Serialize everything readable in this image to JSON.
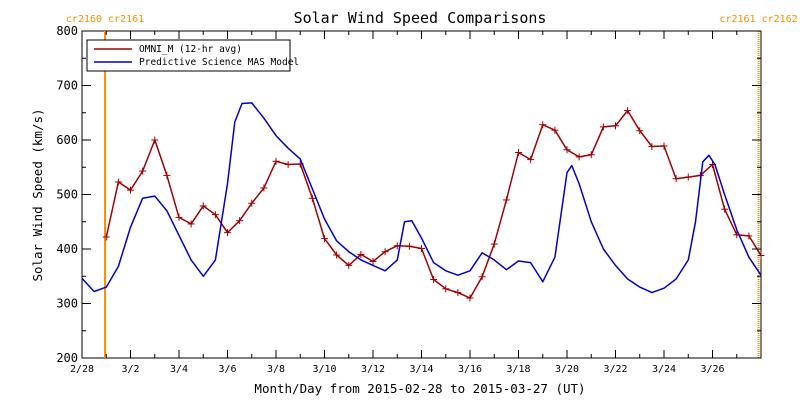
{
  "chart_data": {
    "type": "line",
    "title": "Solar Wind Speed Comparisons",
    "xlabel": "Month/Day from 2015-02-28 to 2015-03-27 (UT)",
    "ylabel": "Solar Wind Speed (km/s)",
    "xlim": [
      0,
      28
    ],
    "ylim": [
      200,
      800
    ],
    "x_ticks": [
      {
        "x": 0,
        "label": "2/28"
      },
      {
        "x": 2,
        "label": "3/2"
      },
      {
        "x": 4,
        "label": "3/4"
      },
      {
        "x": 6,
        "label": "3/6"
      },
      {
        "x": 8,
        "label": "3/8"
      },
      {
        "x": 10,
        "label": "3/10"
      },
      {
        "x": 12,
        "label": "3/12"
      },
      {
        "x": 14,
        "label": "3/14"
      },
      {
        "x": 16,
        "label": "3/16"
      },
      {
        "x": 18,
        "label": "3/18"
      },
      {
        "x": 20,
        "label": "3/20"
      },
      {
        "x": 22,
        "label": "3/22"
      },
      {
        "x": 24,
        "label": "3/24"
      },
      {
        "x": 26,
        "label": "3/26"
      }
    ],
    "y_ticks": [
      200,
      300,
      400,
      500,
      600,
      700,
      800
    ],
    "legend": {
      "placement": "top-left"
    },
    "colors": {
      "omni": "#a00000",
      "model": "#0000cc",
      "carrington": "#ff8c00"
    },
    "carrington_markers": [
      {
        "x": 0.95,
        "labels": [
          "cr2160",
          "cr2161"
        ],
        "style": "solid"
      },
      {
        "x": 27.9,
        "labels": [
          "cr2161",
          "cr2162"
        ],
        "style": "dotted"
      }
    ],
    "series": [
      {
        "name": "OMNI_M (12-hr avg)",
        "color": "#a00000",
        "marker": "plus",
        "x": [
          1.0,
          1.5,
          2.0,
          2.5,
          3.0,
          3.5,
          4.0,
          4.5,
          5.0,
          5.5,
          6.0,
          6.5,
          7.0,
          7.5,
          8.0,
          8.5,
          9.0,
          9.5,
          10.0,
          10.5,
          11.0,
          11.5,
          12.0,
          12.5,
          13.0,
          13.5,
          14.0,
          14.5,
          15.0,
          15.5,
          16.0,
          16.5,
          17.0,
          17.5,
          18.0,
          18.5,
          19.0,
          19.5,
          20.0,
          20.5,
          21.0,
          21.5,
          22.0,
          22.5,
          23.0,
          23.5,
          24.0,
          24.5,
          25.0,
          25.5,
          26.0,
          26.5,
          27.0,
          27.5,
          28.0
        ],
        "y": [
          422,
          523,
          508,
          543,
          600,
          535,
          458,
          446,
          479,
          463,
          430,
          452,
          484,
          512,
          561,
          555,
          556,
          493,
          419,
          389,
          370,
          390,
          377,
          395,
          406,
          405,
          401,
          344,
          327,
          320,
          310,
          349,
          409,
          490,
          577,
          564,
          628,
          618,
          582,
          569,
          573,
          624,
          626,
          654,
          617,
          588,
          589,
          529,
          532,
          535,
          555,
          473,
          426,
          424,
          388
        ]
      },
      {
        "name": "Predictive Science MAS Model",
        "color": "#0000cc",
        "marker": "none",
        "x": [
          0.0,
          0.5,
          1.0,
          1.5,
          2.0,
          2.5,
          3.0,
          3.5,
          4.0,
          4.5,
          5.0,
          5.5,
          6.0,
          6.3,
          6.6,
          7.0,
          7.5,
          8.0,
          8.5,
          9.0,
          9.5,
          10.0,
          10.5,
          11.0,
          11.5,
          12.0,
          12.5,
          13.0,
          13.3,
          13.6,
          14.0,
          14.5,
          15.0,
          15.5,
          16.0,
          16.5,
          17.0,
          17.5,
          18.0,
          18.5,
          19.0,
          19.5,
          20.0,
          20.2,
          20.5,
          21.0,
          21.5,
          22.0,
          22.5,
          23.0,
          23.5,
          24.0,
          24.5,
          25.0,
          25.3,
          25.6,
          25.85,
          26.1,
          26.5,
          27.0,
          27.5,
          28.0
        ],
        "y": [
          346,
          322,
          330,
          368,
          440,
          493,
          497,
          470,
          425,
          380,
          350,
          380,
          520,
          633,
          667,
          668,
          640,
          608,
          585,
          565,
          510,
          455,
          415,
          395,
          380,
          370,
          360,
          380,
          450,
          452,
          420,
          375,
          360,
          352,
          360,
          393,
          380,
          362,
          378,
          375,
          340,
          385,
          540,
          553,
          520,
          450,
          400,
          370,
          345,
          330,
          320,
          328,
          345,
          380,
          450,
          560,
          572,
          555,
          500,
          435,
          385,
          352
        ]
      }
    ]
  }
}
